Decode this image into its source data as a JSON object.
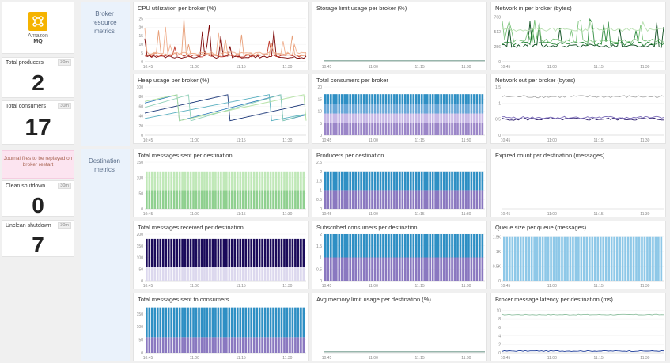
{
  "logo": {
    "name": "Amazon",
    "sub": "MQ",
    "color": "#f5b300"
  },
  "stats": [
    {
      "id": "total-producers",
      "title": "Total producers",
      "badge": "30m",
      "value": "2"
    },
    {
      "id": "total-consumers",
      "title": "Total consumers",
      "badge": "30m",
      "value": "17"
    },
    {
      "id": "clean-shutdown",
      "title": "Clean shutdown",
      "badge": "30m",
      "value": "0"
    },
    {
      "id": "unclean-shutdown",
      "title": "Unclean shutdown",
      "badge": "30m",
      "value": "7"
    }
  ],
  "note": "Journal files to be replayed on broker restart",
  "groups": {
    "broker": "Broker resource metrics",
    "destination": "Destination metrics"
  },
  "x_ticks": [
    "10:45",
    "11:00",
    "11:15",
    "11:30"
  ],
  "panels": [
    {
      "id": "cpu",
      "title": "CPU utilization per broker (%)",
      "chart_data": {
        "type": "line",
        "y_ticks": [
          "0",
          "5",
          "10",
          "15",
          "20",
          "25"
        ],
        "ylim": [
          0,
          27
        ],
        "colors": [
          "#7a0000",
          "#c0392b",
          "#e8a07a",
          "#f0b090"
        ]
      }
    },
    {
      "id": "storage",
      "title": "Storage limit usage per broker (%)",
      "chart_data": {
        "type": "line",
        "y_ticks": [],
        "ylim": [
          0,
          1
        ],
        "colors": [
          "#5a8a7a"
        ]
      }
    },
    {
      "id": "net-in",
      "title": "Network in per broker (bytes)",
      "chart_data": {
        "type": "line",
        "y_ticks": [
          "0",
          "256",
          "512",
          "768"
        ],
        "ylim": [
          0,
          800
        ],
        "colors": [
          "#0b4d1e",
          "#2e8b3e",
          "#7cc47c",
          "#b8e0b0"
        ]
      }
    },
    {
      "id": "heap",
      "title": "Heap usage per broker (%)",
      "chart_data": {
        "type": "line",
        "y_ticks": [
          "0",
          "20",
          "40",
          "60",
          "80",
          "100"
        ],
        "ylim": [
          0,
          100
        ],
        "colors": [
          "#1f3a7a",
          "#2e7bb8",
          "#5ab0c0",
          "#8fd0b8",
          "#b0e0a0"
        ]
      }
    },
    {
      "id": "consumers",
      "title": "Total consumers per broker",
      "chart_data": {
        "type": "stacked-bar",
        "y_ticks": [
          "0",
          "5",
          "10",
          "15",
          "20"
        ],
        "ylim": [
          0,
          20
        ],
        "layers": [
          {
            "value": 5,
            "color": "#9b86c8"
          },
          {
            "value": 4,
            "color": "#c8b8e6"
          },
          {
            "value": 4,
            "color": "#6aa8d8"
          },
          {
            "value": 4,
            "color": "#2e8fc4"
          }
        ]
      }
    },
    {
      "id": "net-out",
      "title": "Network out per broker (bytes)",
      "chart_data": {
        "type": "line",
        "y_ticks": [
          "0",
          "0.5",
          "1",
          "1.5"
        ],
        "ylim": [
          0,
          1.5
        ],
        "colors": [
          "#aaaaaa",
          "#2a1a6a",
          "#7a6ab8"
        ]
      }
    },
    {
      "id": "sent",
      "title": "Total messages sent per destination",
      "chart_data": {
        "type": "stacked-bar",
        "y_ticks": [
          "0",
          "50",
          "100",
          "150"
        ],
        "ylim": [
          0,
          150
        ],
        "layers": [
          {
            "value": 60,
            "color": "#8fd08f"
          },
          {
            "value": 60,
            "color": "#c0e8b8"
          }
        ]
      }
    },
    {
      "id": "producers",
      "title": "Producers per destination",
      "chart_data": {
        "type": "stacked-bar",
        "y_ticks": [
          "0",
          "0.5",
          "1",
          "1.5",
          "2",
          "2.5"
        ],
        "ylim": [
          0,
          2.5
        ],
        "layers": [
          {
            "value": 1,
            "color": "#8a78c0"
          },
          {
            "value": 1,
            "color": "#2e8fc4"
          }
        ]
      }
    },
    {
      "id": "expired",
      "title": "Expired count per destination (messages)",
      "chart_data": {
        "type": "line",
        "y_ticks": [],
        "ylim": [
          0,
          1
        ],
        "colors": []
      }
    },
    {
      "id": "received",
      "title": "Total messages received per destination",
      "chart_data": {
        "type": "stacked-bar",
        "y_ticks": [
          "0",
          "50",
          "100",
          "150",
          "200"
        ],
        "ylim": [
          0,
          200
        ],
        "layers": [
          {
            "value": 60,
            "color": "#dcd8ee"
          },
          {
            "value": 120,
            "color": "#1a0a5a"
          }
        ]
      }
    },
    {
      "id": "subscribed",
      "title": "Subscribed consumers per destination",
      "chart_data": {
        "type": "stacked-bar",
        "y_ticks": [
          "0",
          "0.5",
          "1",
          "1.5",
          "2"
        ],
        "ylim": [
          0,
          2
        ],
        "layers": [
          {
            "value": 1,
            "color": "#8a78c0"
          },
          {
            "value": 1,
            "color": "#2e8fc4"
          }
        ]
      }
    },
    {
      "id": "queue",
      "title": "Queue size per queue (messages)",
      "chart_data": {
        "type": "bar",
        "y_ticks": [
          "0",
          "0.5K",
          "1K",
          "1.5K"
        ],
        "ylim": [
          0,
          1600
        ],
        "layers": [
          {
            "value": 1500,
            "color": "#8ec8e8"
          }
        ]
      }
    },
    {
      "id": "to-consumers",
      "title": "Total messages sent to consumers",
      "chart_data": {
        "type": "stacked-bar",
        "y_ticks": [
          "0",
          "50",
          "100",
          "150"
        ],
        "ylim": [
          0,
          180
        ],
        "layers": [
          {
            "value": 60,
            "color": "#8a78c0"
          },
          {
            "value": 115,
            "color": "#2e8fc4"
          }
        ]
      }
    },
    {
      "id": "avg-mem",
      "title": "Avg memory limit usage per destination (%)",
      "chart_data": {
        "type": "line",
        "y_ticks": [],
        "ylim": [
          0,
          1
        ],
        "colors": [
          "#5a8a7a"
        ]
      }
    },
    {
      "id": "latency",
      "title": "Broker message latency per destination (ms)",
      "chart_data": {
        "type": "line",
        "y_ticks": [
          "0",
          "2",
          "4",
          "6",
          "8",
          "10"
        ],
        "ylim": [
          0,
          11
        ],
        "colors": [
          "#8fc0a0",
          "#1a3a9a"
        ]
      }
    }
  ]
}
